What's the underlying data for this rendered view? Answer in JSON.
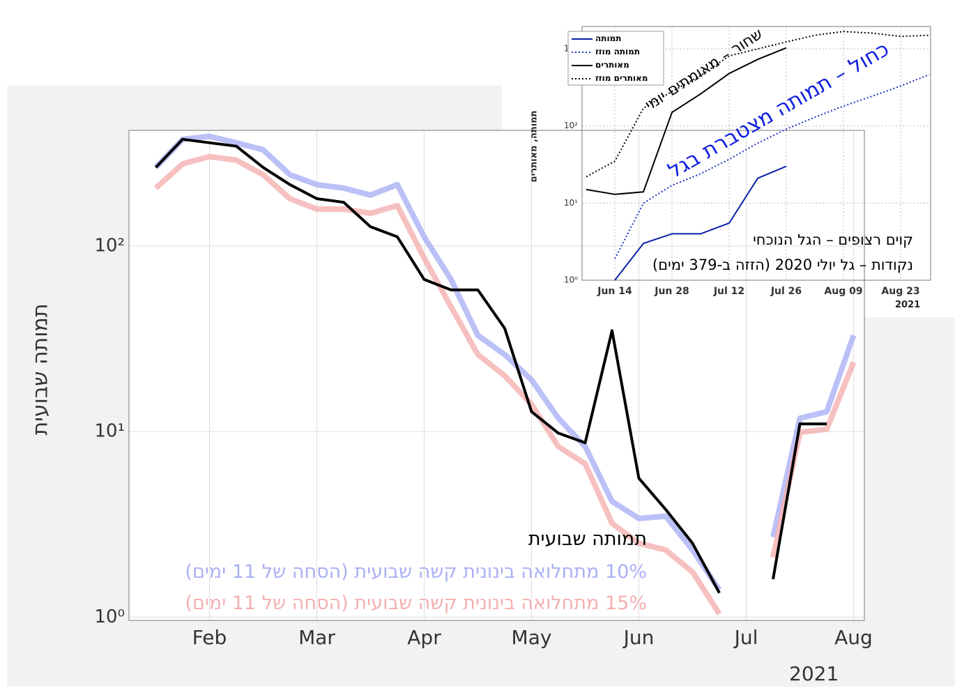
{
  "chart_data": [
    {
      "type": "line",
      "ylabel": "תמותה שבועית",
      "x_note": "2021",
      "log_y": true,
      "grid": true,
      "ylim": [
        0.96,
        420
      ],
      "yticks": [
        {
          "value": 1,
          "label": "10⁰"
        },
        {
          "value": 10,
          "label": "10¹"
        },
        {
          "value": 100,
          "label": "10²"
        }
      ],
      "categories": [
        null,
        null,
        "Feb",
        null,
        null,
        null,
        "Mar",
        null,
        null,
        null,
        "Apr",
        null,
        null,
        null,
        "May",
        null,
        null,
        null,
        "Jun",
        null,
        null,
        null,
        "Jul",
        null,
        null,
        null,
        "Aug"
      ],
      "series": [
        {
          "name": "10% מתחלואה בינונית קשה שבועית (הסחה של 11 ימים)",
          "color": "#aab0f5",
          "values": [
            265,
            376,
            390,
            360,
            330,
            242,
            214,
            205,
            188,
            214,
            112,
            66,
            33,
            26,
            19,
            11.8,
            8.3,
            4.2,
            3.4,
            3.5,
            2.3,
            1.4,
            null,
            2.7,
            11.8,
            12.8,
            33
          ]
        },
        {
          "name": "15% מתחלואה בינונית קשה שבועית (הסחה של 11 ימים)",
          "color": "#f5b0b0",
          "values": [
            205,
            277,
            303,
            290,
            242,
            180,
            158,
            158,
            150,
            165,
            86,
            47,
            26,
            20,
            14,
            8.3,
            6.7,
            3.2,
            2.5,
            2.3,
            1.75,
            1.04,
            null,
            2.1,
            9.9,
            10.3,
            23.6
          ]
        },
        {
          "name": "תמותה שבועית",
          "color": "#000000",
          "values": [
            265,
            376,
            360,
            345,
            265,
            214,
            180,
            172,
            127,
            112,
            66,
            58,
            58,
            36,
            12.8,
            9.8,
            8.7,
            35,
            5.6,
            3.8,
            2.5,
            1.35,
            null,
            1.6,
            11,
            11,
            null
          ]
        }
      ]
    },
    {
      "type": "line",
      "ylabel": "תמותה, מאותרים",
      "x_note": "2021",
      "log_y": true,
      "grid": true,
      "ylim": [
        1,
        1950
      ],
      "yticks": [
        {
          "value": 1,
          "label": "10⁰"
        },
        {
          "value": 10,
          "label": "10¹"
        },
        {
          "value": 100,
          "label": "10²"
        },
        {
          "value": 1000,
          "label": "10³"
        }
      ],
      "categories": [
        null,
        "Jun 14",
        null,
        "Jun 28",
        null,
        "Jul 12",
        null,
        "Jul 26",
        null,
        "Aug 09",
        null,
        "Aug 23",
        null
      ],
      "annotations": [
        "שחור – מאומתים יומי",
        "כחול – תמותה מצטברת בגל",
        "קוים רצופים – הגל הנוכחי",
        "נקודות – גל יולי 2020 (הזזה ב-379 ימים)"
      ],
      "series": [
        {
          "name": "תמותה",
          "color": "#0a1fa8",
          "style": "solid",
          "values": [
            null,
            1,
            3,
            4,
            4,
            5.5,
            21,
            30,
            null,
            null,
            null,
            null,
            null
          ]
        },
        {
          "name": "תמותה מוזז",
          "color": "#1a2fc0",
          "style": "dotted",
          "values": [
            null,
            1.9,
            10,
            17,
            24,
            37,
            60,
            91,
            130,
            181,
            243,
            330,
            464
          ]
        },
        {
          "name": "מאותרים",
          "color": "#000000",
          "style": "solid",
          "values": [
            15,
            13,
            14,
            150,
            260,
            480,
            730,
            1030,
            null,
            null,
            null,
            null,
            null
          ]
        },
        {
          "name": "מאותרים מוזז",
          "color": "#000000",
          "style": "dotted",
          "values": [
            22,
            35,
            170,
            280,
            450,
            810,
            1000,
            1230,
            1500,
            1680,
            1600,
            1450,
            1500
          ]
        }
      ]
    }
  ]
}
